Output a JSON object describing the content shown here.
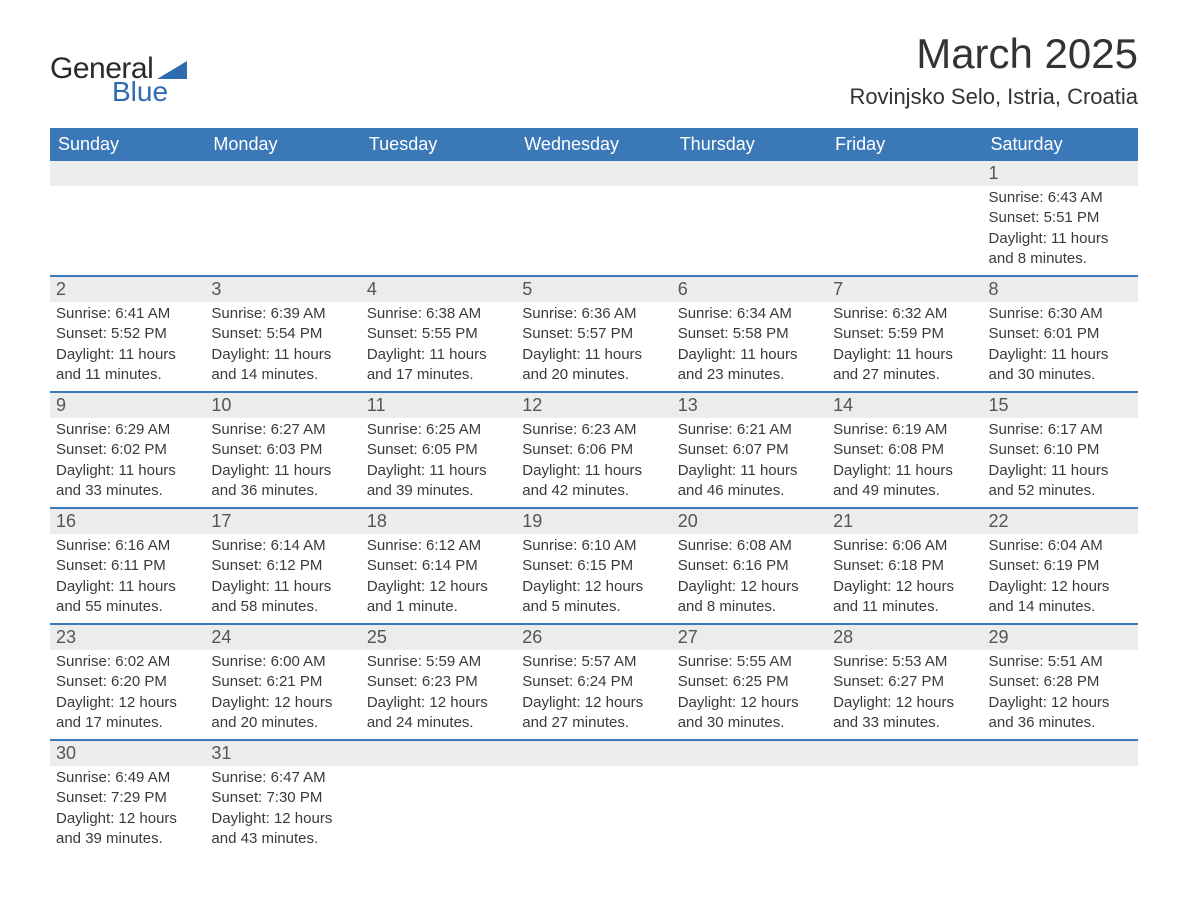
{
  "brand": {
    "word1": "General",
    "word2": "Blue",
    "triangle_color": "#2f6bb0"
  },
  "title": "March 2025",
  "location": "Rovinjsko Selo, Istria, Croatia",
  "colors": {
    "header_bg": "#3a78b8",
    "header_text": "#ffffff",
    "daynum_bg": "#ececec",
    "row_divider": "#3a78b8",
    "text": "#3a3a3a"
  },
  "fonts": {
    "title_size": 42,
    "location_size": 22,
    "header_size": 18,
    "body_size": 15
  },
  "day_headers": [
    "Sunday",
    "Monday",
    "Tuesday",
    "Wednesday",
    "Thursday",
    "Friday",
    "Saturday"
  ],
  "weeks": [
    [
      null,
      null,
      null,
      null,
      null,
      null,
      {
        "n": "1",
        "sunrise": "Sunrise: 6:43 AM",
        "sunset": "Sunset: 5:51 PM",
        "daylight1": "Daylight: 11 hours",
        "daylight2": "and 8 minutes."
      }
    ],
    [
      {
        "n": "2",
        "sunrise": "Sunrise: 6:41 AM",
        "sunset": "Sunset: 5:52 PM",
        "daylight1": "Daylight: 11 hours",
        "daylight2": "and 11 minutes."
      },
      {
        "n": "3",
        "sunrise": "Sunrise: 6:39 AM",
        "sunset": "Sunset: 5:54 PM",
        "daylight1": "Daylight: 11 hours",
        "daylight2": "and 14 minutes."
      },
      {
        "n": "4",
        "sunrise": "Sunrise: 6:38 AM",
        "sunset": "Sunset: 5:55 PM",
        "daylight1": "Daylight: 11 hours",
        "daylight2": "and 17 minutes."
      },
      {
        "n": "5",
        "sunrise": "Sunrise: 6:36 AM",
        "sunset": "Sunset: 5:57 PM",
        "daylight1": "Daylight: 11 hours",
        "daylight2": "and 20 minutes."
      },
      {
        "n": "6",
        "sunrise": "Sunrise: 6:34 AM",
        "sunset": "Sunset: 5:58 PM",
        "daylight1": "Daylight: 11 hours",
        "daylight2": "and 23 minutes."
      },
      {
        "n": "7",
        "sunrise": "Sunrise: 6:32 AM",
        "sunset": "Sunset: 5:59 PM",
        "daylight1": "Daylight: 11 hours",
        "daylight2": "and 27 minutes."
      },
      {
        "n": "8",
        "sunrise": "Sunrise: 6:30 AM",
        "sunset": "Sunset: 6:01 PM",
        "daylight1": "Daylight: 11 hours",
        "daylight2": "and 30 minutes."
      }
    ],
    [
      {
        "n": "9",
        "sunrise": "Sunrise: 6:29 AM",
        "sunset": "Sunset: 6:02 PM",
        "daylight1": "Daylight: 11 hours",
        "daylight2": "and 33 minutes."
      },
      {
        "n": "10",
        "sunrise": "Sunrise: 6:27 AM",
        "sunset": "Sunset: 6:03 PM",
        "daylight1": "Daylight: 11 hours",
        "daylight2": "and 36 minutes."
      },
      {
        "n": "11",
        "sunrise": "Sunrise: 6:25 AM",
        "sunset": "Sunset: 6:05 PM",
        "daylight1": "Daylight: 11 hours",
        "daylight2": "and 39 minutes."
      },
      {
        "n": "12",
        "sunrise": "Sunrise: 6:23 AM",
        "sunset": "Sunset: 6:06 PM",
        "daylight1": "Daylight: 11 hours",
        "daylight2": "and 42 minutes."
      },
      {
        "n": "13",
        "sunrise": "Sunrise: 6:21 AM",
        "sunset": "Sunset: 6:07 PM",
        "daylight1": "Daylight: 11 hours",
        "daylight2": "and 46 minutes."
      },
      {
        "n": "14",
        "sunrise": "Sunrise: 6:19 AM",
        "sunset": "Sunset: 6:08 PM",
        "daylight1": "Daylight: 11 hours",
        "daylight2": "and 49 minutes."
      },
      {
        "n": "15",
        "sunrise": "Sunrise: 6:17 AM",
        "sunset": "Sunset: 6:10 PM",
        "daylight1": "Daylight: 11 hours",
        "daylight2": "and 52 minutes."
      }
    ],
    [
      {
        "n": "16",
        "sunrise": "Sunrise: 6:16 AM",
        "sunset": "Sunset: 6:11 PM",
        "daylight1": "Daylight: 11 hours",
        "daylight2": "and 55 minutes."
      },
      {
        "n": "17",
        "sunrise": "Sunrise: 6:14 AM",
        "sunset": "Sunset: 6:12 PM",
        "daylight1": "Daylight: 11 hours",
        "daylight2": "and 58 minutes."
      },
      {
        "n": "18",
        "sunrise": "Sunrise: 6:12 AM",
        "sunset": "Sunset: 6:14 PM",
        "daylight1": "Daylight: 12 hours",
        "daylight2": "and 1 minute."
      },
      {
        "n": "19",
        "sunrise": "Sunrise: 6:10 AM",
        "sunset": "Sunset: 6:15 PM",
        "daylight1": "Daylight: 12 hours",
        "daylight2": "and 5 minutes."
      },
      {
        "n": "20",
        "sunrise": "Sunrise: 6:08 AM",
        "sunset": "Sunset: 6:16 PM",
        "daylight1": "Daylight: 12 hours",
        "daylight2": "and 8 minutes."
      },
      {
        "n": "21",
        "sunrise": "Sunrise: 6:06 AM",
        "sunset": "Sunset: 6:18 PM",
        "daylight1": "Daylight: 12 hours",
        "daylight2": "and 11 minutes."
      },
      {
        "n": "22",
        "sunrise": "Sunrise: 6:04 AM",
        "sunset": "Sunset: 6:19 PM",
        "daylight1": "Daylight: 12 hours",
        "daylight2": "and 14 minutes."
      }
    ],
    [
      {
        "n": "23",
        "sunrise": "Sunrise: 6:02 AM",
        "sunset": "Sunset: 6:20 PM",
        "daylight1": "Daylight: 12 hours",
        "daylight2": "and 17 minutes."
      },
      {
        "n": "24",
        "sunrise": "Sunrise: 6:00 AM",
        "sunset": "Sunset: 6:21 PM",
        "daylight1": "Daylight: 12 hours",
        "daylight2": "and 20 minutes."
      },
      {
        "n": "25",
        "sunrise": "Sunrise: 5:59 AM",
        "sunset": "Sunset: 6:23 PM",
        "daylight1": "Daylight: 12 hours",
        "daylight2": "and 24 minutes."
      },
      {
        "n": "26",
        "sunrise": "Sunrise: 5:57 AM",
        "sunset": "Sunset: 6:24 PM",
        "daylight1": "Daylight: 12 hours",
        "daylight2": "and 27 minutes."
      },
      {
        "n": "27",
        "sunrise": "Sunrise: 5:55 AM",
        "sunset": "Sunset: 6:25 PM",
        "daylight1": "Daylight: 12 hours",
        "daylight2": "and 30 minutes."
      },
      {
        "n": "28",
        "sunrise": "Sunrise: 5:53 AM",
        "sunset": "Sunset: 6:27 PM",
        "daylight1": "Daylight: 12 hours",
        "daylight2": "and 33 minutes."
      },
      {
        "n": "29",
        "sunrise": "Sunrise: 5:51 AM",
        "sunset": "Sunset: 6:28 PM",
        "daylight1": "Daylight: 12 hours",
        "daylight2": "and 36 minutes."
      }
    ],
    [
      {
        "n": "30",
        "sunrise": "Sunrise: 6:49 AM",
        "sunset": "Sunset: 7:29 PM",
        "daylight1": "Daylight: 12 hours",
        "daylight2": "and 39 minutes."
      },
      {
        "n": "31",
        "sunrise": "Sunrise: 6:47 AM",
        "sunset": "Sunset: 7:30 PM",
        "daylight1": "Daylight: 12 hours",
        "daylight2": "and 43 minutes."
      },
      null,
      null,
      null,
      null,
      null
    ]
  ]
}
